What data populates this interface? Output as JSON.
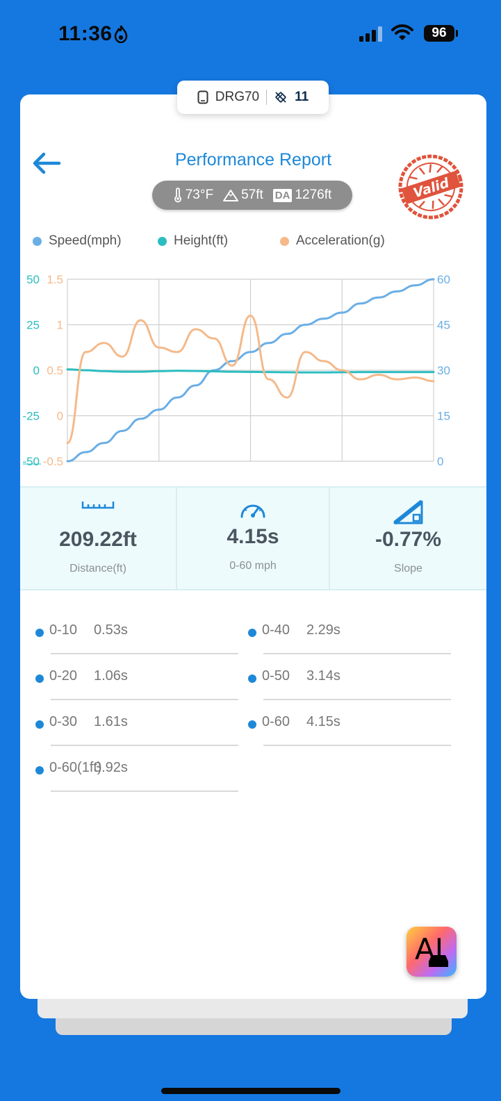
{
  "status_bar": {
    "time": "11:36",
    "battery": "96"
  },
  "device": {
    "name": "DRG70",
    "satellites": "11"
  },
  "header": {
    "title": "Performance Report",
    "temperature": "73°F",
    "altitude": "57ft",
    "da_label": "DA",
    "density_altitude": "1276ft",
    "stamp_text": "Valid"
  },
  "legend": {
    "speed": "Speed(mph)",
    "height": "Height(ft)",
    "acceleration": "Acceleration(g)"
  },
  "colors": {
    "speed": "#6aaee6",
    "height": "#2bbdc0",
    "acceleration": "#f5b98a",
    "accent": "#1e88d8"
  },
  "chart_data": {
    "type": "line",
    "x": [
      0,
      0.05,
      0.1,
      0.15,
      0.2,
      0.25,
      0.3,
      0.35,
      0.4,
      0.45,
      0.5,
      0.55,
      0.6,
      0.65,
      0.7,
      0.75,
      0.8,
      0.85,
      0.9,
      0.95,
      1.0
    ],
    "left_axis_height": {
      "ticks": [
        "50",
        "25",
        "0",
        "-25",
        "-50"
      ],
      "range": [
        -50,
        50
      ]
    },
    "left_axis_acceleration": {
      "ticks": [
        "1.5",
        "1",
        "0.5",
        "0",
        "-0.5"
      ],
      "range": [
        -0.5,
        1.5
      ]
    },
    "right_axis_speed": {
      "ticks": [
        "60",
        "45",
        "30",
        "15",
        "0"
      ],
      "range": [
        0,
        60
      ]
    },
    "series": [
      {
        "name": "Speed(mph)",
        "axis": "right",
        "values": [
          0,
          3,
          6,
          10,
          14,
          17,
          21,
          25,
          30,
          33,
          36,
          39,
          42,
          45,
          47,
          49,
          52,
          54,
          56,
          58,
          60
        ]
      },
      {
        "name": "Height(ft)",
        "axis": "left",
        "values": [
          0.5,
          0,
          -0.5,
          -0.8,
          -0.8,
          -0.5,
          -0.3,
          -0.4,
          -0.6,
          -0.8,
          -0.9,
          -1.0,
          -1.1,
          -1.2,
          -1.2,
          -1.1,
          -1.0,
          -1.0,
          -1.0,
          -1.0,
          -1.0
        ]
      },
      {
        "name": "Acceleration(g)",
        "axis": "left2",
        "values": [
          -0.3,
          0.7,
          0.8,
          0.65,
          1.05,
          0.75,
          0.7,
          0.95,
          0.85,
          0.55,
          1.1,
          0.4,
          0.2,
          0.7,
          0.6,
          0.5,
          0.4,
          0.45,
          0.4,
          0.42,
          0.38
        ]
      }
    ],
    "grid": true
  },
  "stats": [
    {
      "value": "209.22ft",
      "label": "Distance(ft)",
      "icon": "ruler-icon"
    },
    {
      "value": "4.15s",
      "label": "0-60 mph",
      "icon": "speedometer-icon"
    },
    {
      "value": "-0.77%",
      "label": "Slope",
      "icon": "slope-icon"
    }
  ],
  "splits": [
    {
      "name": "0-10",
      "time": "0.53s"
    },
    {
      "name": "0-40",
      "time": "2.29s"
    },
    {
      "name": "0-20",
      "time": "1.06s"
    },
    {
      "name": "0-50",
      "time": "3.14s"
    },
    {
      "name": "0-30",
      "time": "1.61s"
    },
    {
      "name": "0-60",
      "time": "4.15s"
    },
    {
      "name": "0-60(1ft)",
      "time": "3.92s"
    }
  ],
  "ai_button": {
    "label": "AI"
  }
}
